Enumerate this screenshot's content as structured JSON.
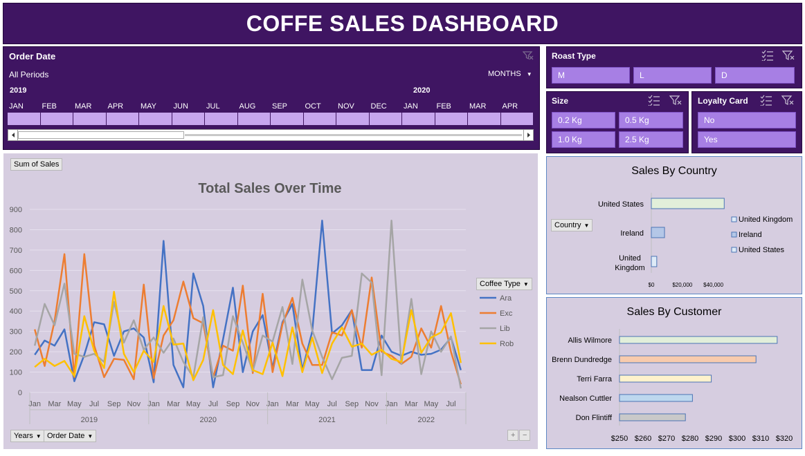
{
  "title": "COFFE SALES DASHBOARD",
  "order_date": {
    "title": "Order Date",
    "period": "All Periods",
    "granularity": "MONTHS",
    "years": [
      "2019",
      "2020"
    ],
    "months": [
      "JAN",
      "FEB",
      "MAR",
      "APR",
      "MAY",
      "JUN",
      "JUL",
      "AUG",
      "SEP",
      "OCT",
      "NOV",
      "DEC",
      "JAN",
      "FEB",
      "MAR",
      "APR"
    ]
  },
  "roast_type": {
    "title": "Roast Type",
    "items": [
      "M",
      "L",
      "D"
    ]
  },
  "size": {
    "title": "Size",
    "items": [
      "0.2 Kg",
      "0.5 Kg",
      "1.0 Kg",
      "2.5 Kg"
    ]
  },
  "loyalty": {
    "title": "Loyalty Card",
    "items": [
      "No",
      "Yes"
    ]
  },
  "sales_chart": {
    "field_button": "Sum of Sales",
    "legend_button": "Coffee Type",
    "axis_buttons": [
      "Years",
      "Order Date"
    ],
    "zoom": [
      "+",
      "−"
    ]
  },
  "country_chart": {
    "field_button": "Country"
  },
  "colors": {
    "purple": "#3f1562",
    "accent": "#a77fe4",
    "chart_bg": "#d6cde0"
  },
  "chart_data": [
    {
      "type": "line",
      "title": "Total Sales Over Time",
      "ylim": [
        0,
        900
      ],
      "yticks": [
        0,
        100,
        200,
        300,
        400,
        500,
        600,
        700,
        800,
        900
      ],
      "x_tick_labels": [
        "Jan",
        "Mar",
        "May",
        "Jul",
        "Sep",
        "Nov",
        "Jan",
        "Mar",
        "May",
        "Jul",
        "Sep",
        "Nov",
        "Jan",
        "Mar",
        "May",
        "Jul",
        "Sep",
        "Nov",
        "Jan",
        "Mar",
        "May",
        "Jul"
      ],
      "year_groups": [
        {
          "label": "2019",
          "months": 12
        },
        {
          "label": "2020",
          "months": 12
        },
        {
          "label": "2021",
          "months": 12
        },
        {
          "label": "2022",
          "months": 8
        }
      ],
      "legend_title": "Coffee Type",
      "series": [
        {
          "name": "Ara",
          "color": "#4472c4",
          "values": [
            185,
            255,
            230,
            310,
            55,
            185,
            345,
            335,
            180,
            300,
            315,
            270,
            50,
            745,
            135,
            25,
            585,
            425,
            25,
            260,
            515,
            100,
            300,
            380,
            120,
            345,
            435,
            110,
            300,
            845,
            290,
            330,
            405,
            110,
            110,
            280,
            200,
            180,
            200,
            185,
            190,
            210,
            270,
            110
          ]
        },
        {
          "name": "Exc",
          "color": "#ed7d31",
          "values": [
            310,
            130,
            350,
            680,
            75,
            680,
            230,
            75,
            165,
            160,
            65,
            530,
            70,
            280,
            355,
            545,
            365,
            340,
            75,
            230,
            205,
            525,
            95,
            485,
            100,
            335,
            465,
            240,
            135,
            135,
            295,
            280,
            405,
            220,
            565,
            200,
            180,
            140,
            175,
            315,
            220,
            425,
            200,
            40
          ]
        },
        {
          "name": "Lib",
          "color": "#a5a5a5",
          "values": [
            230,
            435,
            330,
            535,
            190,
            175,
            190,
            150,
            445,
            245,
            355,
            210,
            270,
            195,
            265,
            150,
            75,
            370,
            75,
            85,
            375,
            245,
            105,
            280,
            250,
            420,
            140,
            555,
            305,
            175,
            65,
            170,
            180,
            585,
            540,
            85,
            845,
            140,
            460,
            90,
            300,
            200,
            275,
            20
          ]
        },
        {
          "name": "Rob",
          "color": "#ffc000",
          "values": [
            125,
            165,
            130,
            155,
            80,
            375,
            205,
            120,
            495,
            190,
            100,
            205,
            150,
            425,
            235,
            240,
            60,
            160,
            405,
            135,
            90,
            305,
            110,
            90,
            245,
            80,
            320,
            100,
            270,
            95,
            240,
            320,
            225,
            240,
            185,
            210,
            165,
            150,
            405,
            195,
            270,
            295,
            390,
            145
          ]
        }
      ]
    },
    {
      "type": "bar",
      "orientation": "horizontal",
      "title": "Sales By Country",
      "categories": [
        "United States",
        "Ireland",
        "United Kingdom"
      ],
      "values": [
        47000,
        8500,
        3500
      ],
      "xticks": [
        "$0",
        "$20,000",
        "$40,000"
      ],
      "xlim": [
        0,
        50000
      ],
      "colors": [
        "#e2efda",
        "#b4c7e7",
        "#deebf7"
      ],
      "legend": [
        "United Kingdom",
        "Ireland",
        "United States"
      ]
    },
    {
      "type": "bar",
      "orientation": "horizontal",
      "title": "Sales By Customer",
      "categories": [
        "Allis Wilmore",
        "Brenn Dundredge",
        "Terri Farra",
        "Nealson Cuttler",
        "Don Flintiff"
      ],
      "values": [
        317,
        308,
        289,
        281,
        278
      ],
      "xlim": [
        250,
        320
      ],
      "xticks": [
        "$250",
        "$260",
        "$270",
        "$280",
        "$290",
        "$300",
        "$310",
        "$320"
      ],
      "colors": [
        "#e2efda",
        "#f8cbad",
        "#fff2cc",
        "#bdd7ee",
        "#c9c9c9"
      ]
    }
  ]
}
